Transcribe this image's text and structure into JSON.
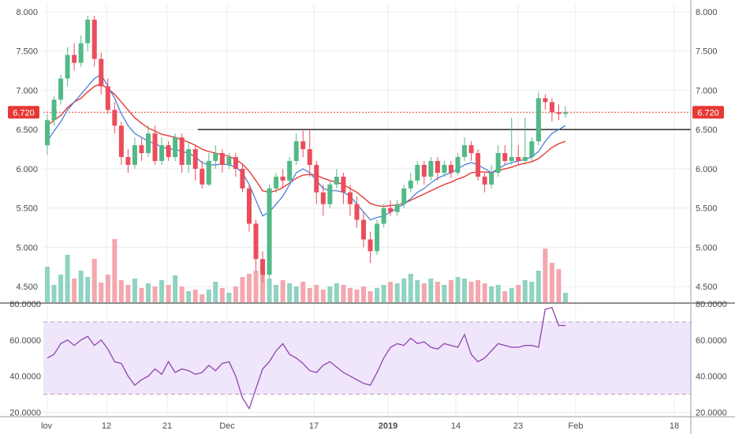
{
  "chart_data": [
    {
      "type": "candlestick",
      "title": "",
      "ylim": [
        4.3,
        8.1
      ],
      "y_ticks": [
        "8.000",
        "7.500",
        "7.000",
        "6.500",
        "6.000",
        "5.500",
        "5.000",
        "4.500"
      ],
      "x_tick_labels": [
        "lov",
        "12",
        "21",
        "Dec",
        "17",
        "2019",
        "14",
        "23",
        "Feb",
        "18"
      ],
      "grid": true,
      "last_price_label": "6.720",
      "last_price": 6.72,
      "resistance_level": 6.5,
      "colors": {
        "up": "#53b987",
        "down": "#eb4d5c",
        "volume_up": "#8fd3c1",
        "volume_down": "#f4a7ae",
        "ma_fast": "#3c78d8",
        "ma_slow": "#e53935",
        "price_line": "#e53935",
        "resistance": "#000000"
      },
      "series": [
        {
          "type": "candles",
          "ohlc": [
            [
              6.3,
              6.62,
              6.18,
              6.7
            ],
            [
              6.62,
              6.88,
              6.55,
              6.92
            ],
            [
              6.88,
              7.15,
              6.82,
              7.2
            ],
            [
              7.15,
              7.45,
              7.05,
              7.55
            ],
            [
              7.45,
              7.35,
              7.25,
              7.6
            ],
            [
              7.35,
              7.6,
              7.3,
              7.7
            ],
            [
              7.6,
              7.9,
              7.5,
              7.95
            ],
            [
              7.9,
              7.4,
              7.3,
              7.95
            ],
            [
              7.4,
              7.05,
              6.95,
              7.48
            ],
            [
              7.05,
              6.75,
              6.7,
              7.15
            ],
            [
              6.75,
              6.55,
              6.45,
              6.85
            ],
            [
              6.55,
              6.15,
              6.05,
              6.6
            ],
            [
              6.15,
              6.05,
              5.95,
              6.25
            ],
            [
              6.05,
              6.3,
              6.0,
              6.4
            ],
            [
              6.3,
              6.2,
              6.1,
              6.4
            ],
            [
              6.2,
              6.45,
              6.15,
              6.55
            ],
            [
              6.45,
              6.1,
              6.05,
              6.55
            ],
            [
              6.1,
              6.3,
              6.05,
              6.4
            ],
            [
              6.3,
              6.15,
              6.1,
              6.35
            ],
            [
              6.15,
              6.4,
              6.1,
              6.45
            ],
            [
              6.4,
              6.05,
              5.95,
              6.45
            ],
            [
              6.05,
              6.25,
              5.95,
              6.35
            ],
            [
              6.25,
              6.0,
              5.85,
              6.3
            ],
            [
              6.0,
              5.8,
              5.75,
              6.1
            ],
            [
              5.8,
              6.1,
              5.78,
              6.2
            ],
            [
              6.1,
              6.2,
              6.0,
              6.3
            ],
            [
              6.2,
              6.05,
              5.95,
              6.25
            ],
            [
              6.05,
              6.15,
              6.0,
              6.2
            ],
            [
              6.15,
              6.0,
              5.9,
              6.2
            ],
            [
              6.0,
              5.75,
              5.7,
              6.05
            ],
            [
              5.75,
              5.3,
              5.2,
              5.8
            ],
            [
              5.3,
              4.85,
              4.7,
              5.35
            ],
            [
              4.85,
              4.65,
              4.55,
              4.95
            ],
            [
              4.65,
              5.75,
              4.6,
              5.8
            ],
            [
              5.75,
              5.9,
              5.7,
              5.95
            ],
            [
              5.9,
              5.85,
              5.75,
              6.0
            ],
            [
              5.85,
              6.1,
              5.8,
              6.15
            ],
            [
              6.1,
              6.35,
              6.05,
              6.45
            ],
            [
              6.35,
              6.25,
              6.15,
              6.5
            ],
            [
              6.25,
              6.05,
              5.9,
              6.5
            ],
            [
              6.05,
              5.7,
              5.55,
              6.1
            ],
            [
              5.7,
              5.55,
              5.4,
              5.8
            ],
            [
              5.55,
              5.8,
              5.5,
              5.85
            ],
            [
              5.8,
              5.9,
              5.75,
              6.0
            ],
            [
              5.9,
              5.7,
              5.55,
              5.95
            ],
            [
              5.7,
              5.55,
              5.4,
              5.8
            ],
            [
              5.55,
              5.35,
              5.25,
              5.65
            ],
            [
              5.35,
              5.1,
              5.0,
              5.45
            ],
            [
              5.1,
              4.95,
              4.8,
              5.2
            ],
            [
              4.95,
              5.3,
              4.9,
              5.35
            ],
            [
              5.3,
              5.5,
              5.25,
              5.55
            ],
            [
              5.5,
              5.45,
              5.4,
              5.6
            ],
            [
              5.45,
              5.55,
              5.4,
              5.6
            ],
            [
              5.55,
              5.75,
              5.5,
              5.8
            ],
            [
              5.75,
              5.85,
              5.7,
              5.95
            ],
            [
              5.85,
              6.05,
              5.8,
              6.1
            ],
            [
              6.05,
              5.9,
              5.8,
              6.1
            ],
            [
              5.9,
              6.1,
              5.85,
              6.15
            ],
            [
              6.1,
              5.95,
              5.85,
              6.15
            ],
            [
              5.95,
              6.05,
              5.9,
              6.1
            ],
            [
              6.05,
              5.95,
              5.88,
              6.1
            ],
            [
              5.95,
              6.15,
              5.92,
              6.2
            ],
            [
              6.15,
              6.3,
              6.1,
              6.4
            ],
            [
              6.3,
              6.2,
              6.1,
              6.35
            ],
            [
              6.2,
              5.9,
              5.85,
              6.25
            ],
            [
              5.9,
              5.8,
              5.7,
              5.95
            ],
            [
              5.8,
              5.95,
              5.75,
              6.05
            ],
            [
              5.95,
              6.2,
              5.9,
              6.3
            ],
            [
              6.2,
              6.1,
              6.05,
              6.3
            ],
            [
              6.1,
              6.15,
              6.05,
              6.65
            ],
            [
              6.15,
              6.1,
              6.05,
              6.3
            ],
            [
              6.1,
              6.15,
              6.05,
              6.65
            ],
            [
              6.15,
              6.35,
              6.1,
              6.4
            ],
            [
              6.35,
              6.9,
              6.3,
              6.98
            ],
            [
              6.9,
              6.85,
              6.75,
              6.95
            ],
            [
              6.85,
              6.72,
              6.6,
              6.9
            ],
            [
              6.72,
              6.7,
              6.62,
              6.82
            ],
            [
              6.7,
              6.72,
              6.65,
              6.8
            ]
          ]
        },
        {
          "name": "",
          "type": "ma_fast",
          "values": [
            6.35,
            6.48,
            6.6,
            6.75,
            6.85,
            6.95,
            7.05,
            7.15,
            7.2,
            7.05,
            6.9,
            6.7,
            6.55,
            6.45,
            6.4,
            6.35,
            6.32,
            6.28,
            6.25,
            6.25,
            6.22,
            6.2,
            6.15,
            6.08,
            6.05,
            6.05,
            6.06,
            6.05,
            6.02,
            5.95,
            5.8,
            5.6,
            5.4,
            5.45,
            5.55,
            5.65,
            5.8,
            5.95,
            6.0,
            5.95,
            5.85,
            5.75,
            5.72,
            5.72,
            5.7,
            5.65,
            5.55,
            5.45,
            5.35,
            5.38,
            5.4,
            5.45,
            5.5,
            5.55,
            5.62,
            5.7,
            5.75,
            5.82,
            5.88,
            5.92,
            5.95,
            6.0,
            6.05,
            6.08,
            6.05,
            6.0,
            5.95,
            6.0,
            6.05,
            6.08,
            6.1,
            6.12,
            6.15,
            6.22,
            6.35,
            6.45,
            6.5,
            6.55
          ]
        },
        {
          "name": "",
          "type": "ma_slow",
          "values": [
            6.55,
            6.62,
            6.68,
            6.78,
            6.85,
            6.9,
            6.98,
            7.05,
            7.08,
            7.02,
            6.95,
            6.85,
            6.75,
            6.65,
            6.58,
            6.52,
            6.48,
            6.44,
            6.42,
            6.4,
            6.37,
            6.34,
            6.3,
            6.25,
            6.22,
            6.2,
            6.18,
            6.16,
            6.12,
            6.06,
            5.97,
            5.85,
            5.72,
            5.7,
            5.72,
            5.76,
            5.82,
            5.88,
            5.92,
            5.93,
            5.92,
            5.88,
            5.85,
            5.83,
            5.8,
            5.75,
            5.7,
            5.63,
            5.56,
            5.53,
            5.52,
            5.53,
            5.54,
            5.56,
            5.6,
            5.64,
            5.68,
            5.72,
            5.76,
            5.8,
            5.83,
            5.87,
            5.9,
            5.95,
            5.96,
            5.96,
            5.95,
            5.98,
            6.0,
            6.02,
            6.05,
            6.07,
            6.09,
            6.13,
            6.2,
            6.27,
            6.32,
            6.35
          ]
        },
        {
          "name": "",
          "type": "volume",
          "values": [
            0.45,
            0.22,
            0.35,
            0.6,
            0.3,
            0.4,
            0.32,
            0.55,
            0.25,
            0.35,
            0.8,
            0.28,
            0.22,
            0.3,
            0.18,
            0.24,
            0.2,
            0.28,
            0.22,
            0.34,
            0.2,
            0.14,
            0.16,
            0.1,
            0.16,
            0.26,
            0.18,
            0.12,
            0.2,
            0.32,
            0.36,
            0.4,
            0.38,
            0.3,
            0.22,
            0.28,
            0.24,
            0.2,
            0.26,
            0.18,
            0.22,
            0.16,
            0.2,
            0.24,
            0.22,
            0.18,
            0.16,
            0.2,
            0.14,
            0.18,
            0.22,
            0.26,
            0.24,
            0.3,
            0.36,
            0.28,
            0.24,
            0.3,
            0.26,
            0.22,
            0.28,
            0.32,
            0.3,
            0.26,
            0.28,
            0.24,
            0.2,
            0.22,
            0.14,
            0.18,
            0.22,
            0.28,
            0.26,
            0.4,
            0.68,
            0.5,
            0.42,
            0.12
          ]
        }
      ]
    },
    {
      "type": "line",
      "title": "",
      "ylim": [
        18,
        80
      ],
      "y_ticks": [
        "80.0000",
        "60.0000",
        "40.0000",
        "20.0000"
      ],
      "upper_band": 70,
      "lower_band": 30,
      "colors": {
        "line": "#8e44ad",
        "band_fill": "#f0e6fb",
        "band_line": "#b3a0c8"
      },
      "series": [
        {
          "name": "",
          "values": [
            50,
            52,
            58,
            60,
            57,
            60,
            62,
            57,
            60,
            55,
            48,
            47,
            40,
            35,
            38,
            40,
            44,
            41,
            48,
            42,
            44,
            43,
            41,
            42,
            46,
            43,
            47,
            48,
            40,
            28,
            22,
            33,
            44,
            48,
            54,
            58,
            52,
            50,
            47,
            43,
            42,
            46,
            48,
            45,
            42,
            40,
            38,
            36,
            35,
            42,
            50,
            56,
            58,
            57,
            61,
            58,
            59,
            56,
            55,
            58,
            57,
            56,
            63,
            52,
            48,
            50,
            54,
            58,
            57,
            56,
            56,
            57,
            57,
            56,
            77,
            78,
            68,
            68
          ]
        }
      ]
    }
  ]
}
